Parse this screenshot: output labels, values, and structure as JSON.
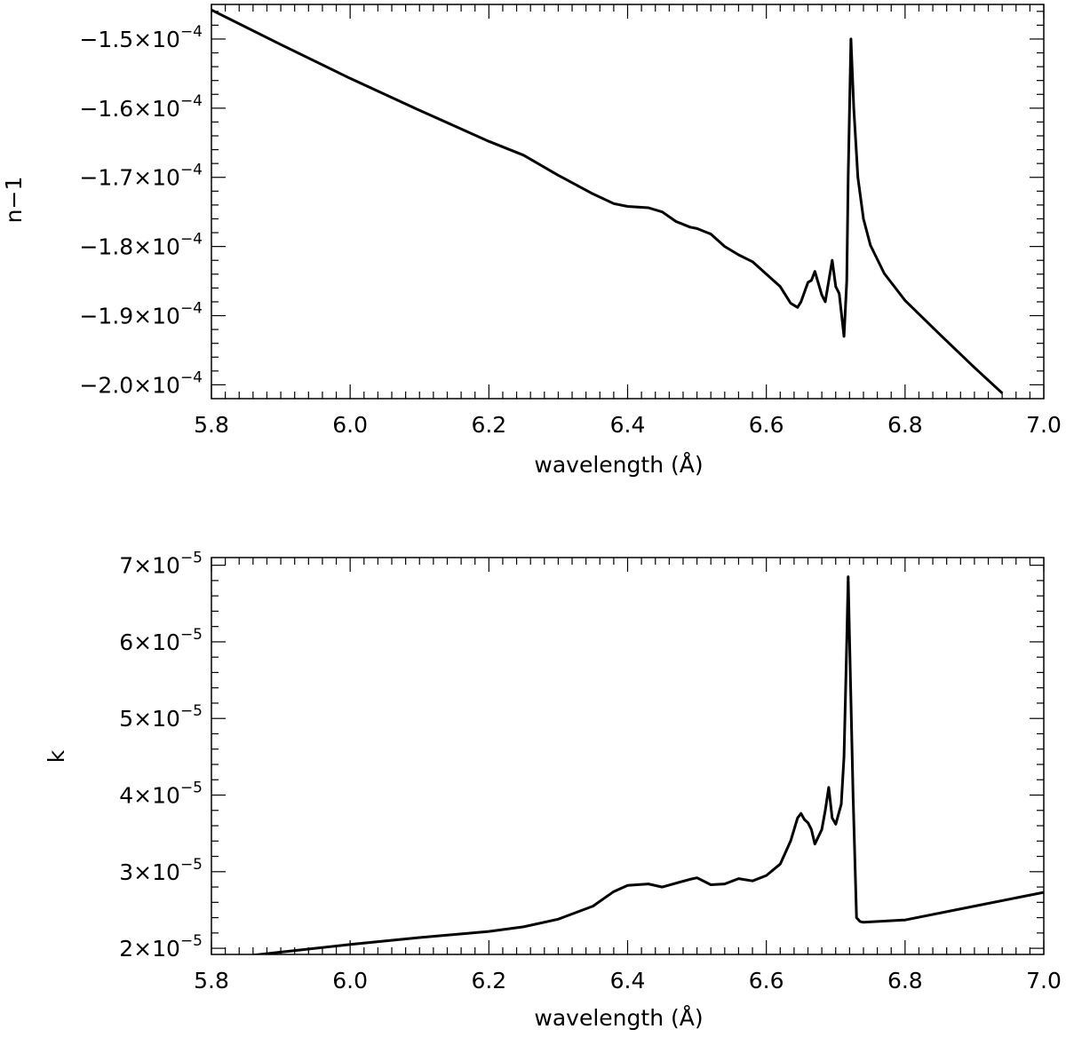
{
  "chart_data": [
    {
      "type": "line",
      "xlabel": "wavelength (Å)",
      "ylabel": "n−1",
      "xlim": [
        5.8,
        7.0
      ],
      "ylim": [
        -0.000202,
        -0.000145
      ],
      "x_ticks": [
        5.8,
        6.0,
        6.2,
        6.4,
        6.6,
        6.8,
        7.0
      ],
      "x_tick_labels": [
        "5.8",
        "6.0",
        "6.2",
        "6.4",
        "6.6",
        "6.8",
        "7.0"
      ],
      "y_ticks": [
        -0.00015,
        -0.00016,
        -0.00017,
        -0.00018,
        -0.00019,
        -0.0002
      ],
      "y_tick_mantissas": [
        "−1.5",
        "−1.6",
        "−1.7",
        "−1.8",
        "−1.9",
        "−2.0"
      ],
      "y_tick_exponents": [
        "−4",
        "−4",
        "−4",
        "−4",
        "−4",
        "−4"
      ],
      "series": [
        {
          "x": [
            5.8,
            5.9,
            6.0,
            6.1,
            6.2,
            6.25,
            6.3,
            6.35,
            6.38,
            6.4,
            6.43,
            6.45,
            6.47,
            6.49,
            6.5,
            6.52,
            6.54,
            6.56,
            6.58,
            6.6,
            6.62,
            6.635,
            6.645,
            6.65,
            6.66,
            6.665,
            6.67,
            6.68,
            6.685,
            6.69,
            6.695,
            6.7,
            6.705,
            6.712,
            6.716,
            6.718,
            6.722,
            6.726,
            6.732,
            6.74,
            6.75,
            6.77,
            6.8,
            6.85,
            6.9,
            6.94
          ],
          "y": [
            -0.0001458,
            -0.0001508,
            -0.0001557,
            -0.0001603,
            -0.0001648,
            -0.0001668,
            -0.0001697,
            -0.0001724,
            -0.0001738,
            -0.0001742,
            -0.0001744,
            -0.000175,
            -0.0001764,
            -0.0001772,
            -0.0001774,
            -0.0001782,
            -0.00018,
            -0.0001812,
            -0.0001822,
            -0.000184,
            -0.0001858,
            -0.0001882,
            -0.0001888,
            -0.000188,
            -0.0001852,
            -0.0001849,
            -0.0001836,
            -0.000187,
            -0.000188,
            -0.000185,
            -0.000182,
            -0.0001858,
            -0.0001868,
            -0.000193,
            -0.000185,
            -0.00017,
            -0.00015,
            -0.00016,
            -0.00017,
            -0.000176,
            -0.0001798,
            -0.0001839,
            -0.0001878,
            -0.0001927,
            -0.0001975,
            -0.0002012
          ]
        }
      ]
    },
    {
      "type": "line",
      "xlabel": "wavelength (Å)",
      "ylabel": "k",
      "xlim": [
        5.8,
        7.0
      ],
      "ylim": [
        1.92e-05,
        7.1e-05
      ],
      "x_ticks": [
        5.8,
        6.0,
        6.2,
        6.4,
        6.6,
        6.8,
        7.0
      ],
      "x_tick_labels": [
        "5.8",
        "6.0",
        "6.2",
        "6.4",
        "6.6",
        "6.8",
        "7.0"
      ],
      "y_ticks": [
        2e-05,
        3e-05,
        4e-05,
        5e-05,
        6e-05,
        7e-05
      ],
      "y_tick_mantissas": [
        "2",
        "3",
        "4",
        "5",
        "6",
        "7"
      ],
      "y_tick_exponents": [
        "−5",
        "−5",
        "−5",
        "−5",
        "−5",
        "−5"
      ],
      "series": [
        {
          "x": [
            5.86,
            5.9,
            6.0,
            6.1,
            6.2,
            6.25,
            6.3,
            6.35,
            6.38,
            6.4,
            6.43,
            6.45,
            6.47,
            6.49,
            6.5,
            6.52,
            6.54,
            6.56,
            6.58,
            6.6,
            6.62,
            6.635,
            6.645,
            6.65,
            6.655,
            6.66,
            6.665,
            6.67,
            6.68,
            6.685,
            6.69,
            6.695,
            6.7,
            6.708,
            6.712,
            6.716,
            6.718,
            6.72,
            6.725,
            6.73,
            6.735,
            6.74,
            6.8,
            6.9,
            7.0
          ],
          "y": [
            1.91e-05,
            1.95e-05,
            2.05e-05,
            2.14e-05,
            2.22e-05,
            2.28e-05,
            2.38e-05,
            2.55e-05,
            2.74e-05,
            2.82e-05,
            2.84e-05,
            2.8e-05,
            2.85e-05,
            2.9e-05,
            2.92e-05,
            2.83e-05,
            2.84e-05,
            2.91e-05,
            2.88e-05,
            2.95e-05,
            3.1e-05,
            3.4e-05,
            3.7e-05,
            3.76e-05,
            3.68e-05,
            3.64e-05,
            3.55e-05,
            3.36e-05,
            3.55e-05,
            3.8e-05,
            4.1e-05,
            3.7e-05,
            3.62e-05,
            3.88e-05,
            4.5e-05,
            6e-05,
            6.85e-05,
            6e-05,
            4e-05,
            2.4e-05,
            2.35e-05,
            2.34e-05,
            2.37e-05,
            2.55e-05,
            2.73e-05
          ]
        }
      ]
    }
  ]
}
